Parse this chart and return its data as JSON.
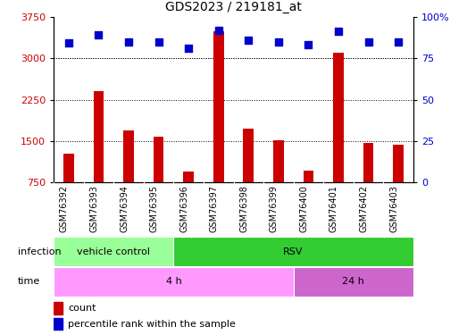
{
  "title": "GDS2023 / 219181_at",
  "samples": [
    "GSM76392",
    "GSM76393",
    "GSM76394",
    "GSM76395",
    "GSM76396",
    "GSM76397",
    "GSM76398",
    "GSM76399",
    "GSM76400",
    "GSM76401",
    "GSM76402",
    "GSM76403"
  ],
  "counts": [
    1280,
    2400,
    1700,
    1580,
    950,
    3480,
    1720,
    1520,
    960,
    3100,
    1460,
    1430
  ],
  "percentile_ranks": [
    84,
    89,
    85,
    85,
    81,
    92,
    86,
    85,
    83,
    91,
    85,
    85
  ],
  "ylim_left": [
    750,
    3750
  ],
  "ylim_right": [
    0,
    100
  ],
  "yticks_left": [
    750,
    1500,
    2250,
    3000,
    3750
  ],
  "yticks_right": [
    0,
    25,
    50,
    75,
    100
  ],
  "bar_color": "#cc0000",
  "scatter_color": "#0000cc",
  "infection_labels": [
    {
      "label": "vehicle control",
      "start": 0,
      "end": 4,
      "color": "#99ff99"
    },
    {
      "label": "RSV",
      "start": 4,
      "end": 12,
      "color": "#33cc33"
    }
  ],
  "time_labels": [
    {
      "label": "4 h",
      "start": 0,
      "end": 8,
      "color": "#ff99ff"
    },
    {
      "label": "24 h",
      "start": 8,
      "end": 12,
      "color": "#cc66cc"
    }
  ],
  "legend_count_label": "count",
  "legend_pct_label": "percentile rank within the sample",
  "axis_label_color_left": "#cc0000",
  "axis_label_color_right": "#0000cc",
  "grid_color": "#000000",
  "bg_color": "#ffffff",
  "plot_bg": "#ffffff",
  "xlabel_area_bg": "#cccccc"
}
